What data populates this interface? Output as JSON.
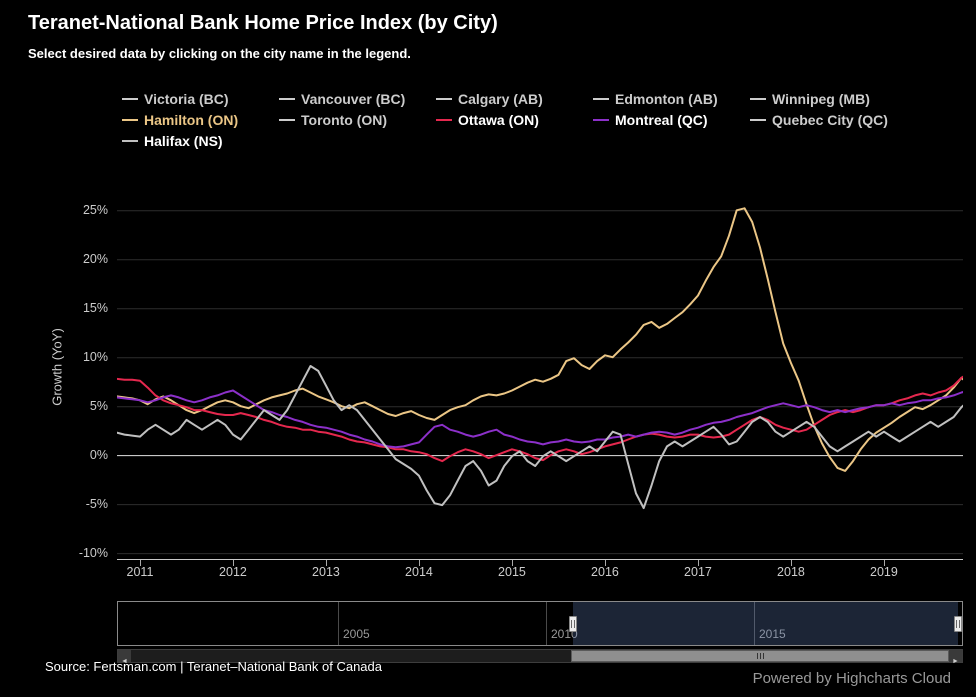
{
  "chart_data": {
    "type": "line",
    "title": "Teranet-National Bank Home Price Index (by City)",
    "subtitle": "Select desired data by clicking on the city name in the legend.",
    "ylabel": "Growth (YoY)",
    "ytick_suffix": "%",
    "yticks": [
      -10,
      -5,
      0,
      5,
      10,
      15,
      20,
      25
    ],
    "xticks": [
      2011,
      2012,
      2013,
      2014,
      2015,
      2016,
      2017,
      2018,
      2019
    ],
    "ylim": [
      -10.7,
      28.6
    ],
    "xlim": [
      2010.753,
      2019.85
    ],
    "grid": "horizontal",
    "legend_position": "top",
    "series": [
      {
        "name": "Hamilton (ON)",
        "color": "#ebc686",
        "x_start": 2010.75,
        "x_step": 0.0833333,
        "values": [
          6.0,
          5.9,
          5.8,
          5.6,
          5.2,
          5.7,
          6.0,
          5.6,
          5.1,
          4.6,
          4.3,
          4.6,
          5.0,
          5.4,
          5.6,
          5.4,
          5.0,
          4.8,
          5.2,
          5.6,
          5.9,
          6.1,
          6.3,
          6.6,
          6.8,
          6.4,
          6.0,
          5.7,
          5.4,
          5.0,
          4.8,
          5.2,
          5.4,
          5.0,
          4.6,
          4.2,
          4.0,
          4.3,
          4.5,
          4.1,
          3.8,
          3.6,
          4.1,
          4.6,
          4.9,
          5.1,
          5.6,
          6.0,
          6.2,
          6.1,
          6.3,
          6.6,
          7.0,
          7.4,
          7.7,
          7.5,
          7.8,
          8.2,
          9.6,
          9.9,
          9.2,
          8.8,
          9.6,
          10.2,
          10.0,
          10.8,
          11.5,
          12.3,
          13.3,
          13.6,
          13.0,
          13.4,
          14.0,
          14.6,
          15.4,
          16.3,
          17.8,
          19.2,
          20.3,
          22.4,
          25.0,
          25.2,
          23.8,
          21.2,
          18.0,
          14.6,
          11.4,
          9.4,
          7.6,
          5.2,
          3.0,
          1.2,
          -0.2,
          -1.3,
          -1.6,
          -0.6,
          0.6,
          1.6,
          2.3,
          2.8,
          3.3,
          3.9,
          4.4,
          4.9,
          4.7,
          5.1,
          5.6,
          6.1,
          6.9,
          7.9,
          7.2
        ]
      },
      {
        "name": "Ottawa (ON)",
        "color": "#e5284e",
        "x_start": 2010.75,
        "x_step": 0.0833333,
        "values": [
          7.8,
          7.7,
          7.7,
          7.6,
          6.9,
          6.1,
          5.6,
          5.3,
          5.1,
          4.9,
          4.6,
          4.6,
          4.4,
          4.2,
          4.1,
          4.1,
          4.3,
          4.1,
          3.9,
          3.6,
          3.4,
          3.1,
          2.9,
          2.8,
          2.6,
          2.6,
          2.4,
          2.3,
          2.1,
          1.9,
          1.6,
          1.4,
          1.3,
          1.1,
          0.9,
          0.8,
          0.6,
          0.6,
          0.4,
          0.3,
          0.1,
          -0.3,
          -0.6,
          -0.1,
          0.3,
          0.6,
          0.4,
          0.1,
          -0.3,
          0.0,
          0.3,
          0.6,
          0.4,
          0.1,
          -0.3,
          -0.5,
          0.0,
          0.4,
          0.6,
          0.4,
          0.1,
          0.3,
          0.6,
          0.9,
          1.1,
          1.3,
          1.6,
          1.9,
          2.1,
          2.2,
          2.1,
          1.9,
          1.8,
          1.9,
          2.1,
          2.1,
          1.9,
          1.8,
          1.9,
          2.1,
          2.6,
          3.1,
          3.6,
          3.9,
          3.6,
          3.1,
          2.8,
          2.6,
          2.4,
          2.6,
          3.1,
          3.6,
          4.1,
          4.4,
          4.6,
          4.4,
          4.6,
          4.9,
          5.1,
          5.1,
          5.3,
          5.6,
          5.8,
          6.1,
          6.3,
          6.1,
          6.4,
          6.6,
          7.1,
          7.9,
          8.4
        ]
      },
      {
        "name": "Montreal (QC)",
        "color": "#8c30c9",
        "x_start": 2010.75,
        "x_step": 0.0833333,
        "values": [
          5.9,
          5.8,
          5.7,
          5.6,
          5.4,
          5.6,
          5.9,
          6.1,
          5.9,
          5.6,
          5.4,
          5.6,
          5.9,
          6.1,
          6.4,
          6.6,
          6.1,
          5.6,
          5.1,
          4.6,
          4.4,
          4.1,
          3.9,
          3.6,
          3.4,
          3.1,
          2.9,
          2.8,
          2.6,
          2.4,
          2.1,
          1.9,
          1.6,
          1.4,
          1.1,
          0.9,
          0.8,
          0.9,
          1.1,
          1.3,
          2.1,
          2.9,
          3.1,
          2.6,
          2.4,
          2.1,
          1.9,
          2.1,
          2.4,
          2.6,
          2.1,
          1.9,
          1.6,
          1.4,
          1.3,
          1.1,
          1.3,
          1.4,
          1.6,
          1.4,
          1.3,
          1.4,
          1.6,
          1.6,
          1.8,
          1.9,
          2.1,
          1.9,
          2.1,
          2.3,
          2.4,
          2.3,
          2.1,
          2.3,
          2.6,
          2.8,
          3.1,
          3.3,
          3.4,
          3.6,
          3.9,
          4.1,
          4.3,
          4.6,
          4.9,
          5.1,
          5.3,
          5.1,
          4.9,
          5.1,
          4.9,
          4.6,
          4.4,
          4.6,
          4.4,
          4.6,
          4.8,
          4.9,
          5.1,
          5.1,
          5.3,
          5.1,
          5.3,
          5.4,
          5.6,
          5.6,
          5.8,
          5.9,
          6.1,
          6.4,
          6.6
        ]
      },
      {
        "name": "Halifax (NS)",
        "color": "#c0c0c0",
        "x_start": 2010.75,
        "x_step": 0.0833333,
        "values": [
          2.3,
          2.1,
          2.0,
          1.9,
          2.6,
          3.1,
          2.6,
          2.1,
          2.6,
          3.6,
          3.1,
          2.6,
          3.1,
          3.6,
          3.1,
          2.1,
          1.6,
          2.6,
          3.6,
          4.6,
          4.1,
          3.6,
          4.6,
          6.1,
          7.6,
          9.1,
          8.6,
          7.1,
          5.6,
          4.6,
          5.1,
          4.6,
          3.6,
          2.6,
          1.6,
          0.6,
          -0.4,
          -0.9,
          -1.4,
          -2.1,
          -3.6,
          -4.9,
          -5.1,
          -4.1,
          -2.6,
          -1.1,
          -0.6,
          -1.6,
          -3.1,
          -2.6,
          -1.1,
          -0.1,
          0.4,
          -0.6,
          -1.1,
          -0.1,
          0.4,
          -0.1,
          -0.6,
          -0.1,
          0.4,
          0.9,
          0.4,
          1.4,
          2.4,
          2.1,
          -0.9,
          -3.9,
          -5.4,
          -3.1,
          -0.6,
          0.9,
          1.4,
          0.9,
          1.4,
          1.9,
          2.4,
          2.9,
          2.1,
          1.1,
          1.4,
          2.4,
          3.4,
          3.9,
          3.4,
          2.4,
          1.9,
          2.4,
          2.9,
          3.4,
          2.9,
          1.9,
          0.9,
          0.4,
          0.9,
          1.4,
          1.9,
          2.4,
          1.9,
          2.4,
          1.9,
          1.4,
          1.9,
          2.4,
          2.9,
          3.4,
          2.9,
          3.4,
          3.9,
          4.9,
          5.6
        ]
      }
    ]
  },
  "legend": {
    "items": [
      {
        "label": "Victoria (BC)",
        "color": "#cccccc",
        "text_color": "#cccccc",
        "active": false
      },
      {
        "label": "Vancouver (BC)",
        "color": "#cccccc",
        "text_color": "#cccccc",
        "active": false
      },
      {
        "label": "Calgary (AB)",
        "color": "#cccccc",
        "text_color": "#cccccc",
        "active": false
      },
      {
        "label": "Edmonton (AB)",
        "color": "#cccccc",
        "text_color": "#cccccc",
        "active": false
      },
      {
        "label": "Winnipeg (MB)",
        "color": "#cccccc",
        "text_color": "#cccccc",
        "active": false
      },
      {
        "label": "Hamilton (ON)",
        "color": "#ebc686",
        "text_color": "#ebc686",
        "active": true
      },
      {
        "label": "Toronto (ON)",
        "color": "#cccccc",
        "text_color": "#cccccc",
        "active": false
      },
      {
        "label": "Ottawa (ON)",
        "color": "#e5284e",
        "text_color": "#ffffff",
        "active": true
      },
      {
        "label": "Montreal (QC)",
        "color": "#8c30c9",
        "text_color": "#ffffff",
        "active": true
      },
      {
        "label": "Quebec City (QC)",
        "color": "#cccccc",
        "text_color": "#cccccc",
        "active": false
      },
      {
        "label": "Halifax (NS)",
        "color": "#c0c0c0",
        "text_color": "#ffffff",
        "active": true
      }
    ]
  },
  "navigator": {
    "axis_range": [
      1999.7,
      2020.05
    ],
    "tick_years": [
      "2005",
      "2010",
      "2015"
    ],
    "selected_range": [
      2010.65,
      2019.9
    ]
  },
  "scrollbar": {
    "range": [
      0.538,
      1.0
    ]
  },
  "icons": {
    "scrollbar_left": "◄",
    "scrollbar_right": "►"
  },
  "footer": {
    "source": "Source: Fertsman.com | Teranet–National Bank of Canada",
    "credits": "Powered by Highcharts Cloud"
  }
}
